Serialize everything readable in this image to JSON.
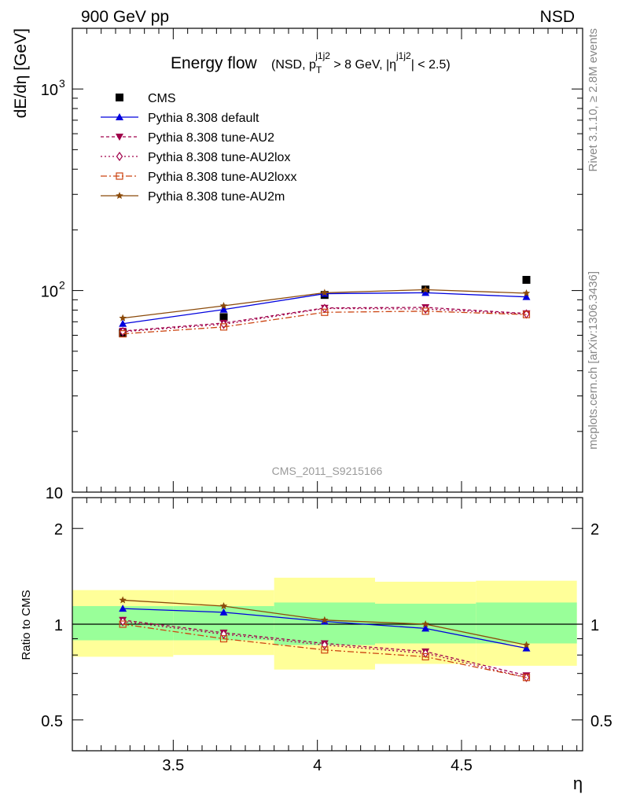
{
  "header": {
    "left": "900 GeV pp",
    "right": "NSD"
  },
  "side_labels": {
    "rivet": "Rivet 3.1.10, ≥ 2.8M events",
    "mcplots": "mcplots.cern.ch [arXiv:1306.3436]"
  },
  "chart_data": [
    {
      "type": "line",
      "title_main": "Energy flow",
      "title_sub_parts": [
        "(NSD, p",
        "T",
        "j1j2",
        " > 8 GeV, |η",
        "j1j2",
        "| < 2.5)"
      ],
      "ylabel": "dE/dη [GeV]",
      "yscale": "log",
      "ylim": [
        10,
        2000
      ],
      "xlim": [
        3.15,
        4.92
      ],
      "y_ticks": [
        {
          "value": 10,
          "label": "10"
        },
        {
          "value": 100,
          "label": "10",
          "exp": "2"
        },
        {
          "value": 1000,
          "label": "10",
          "exp": "3"
        }
      ],
      "watermark": "CMS_2011_S9215166",
      "x": [
        3.325,
        3.675,
        4.025,
        4.375,
        4.725
      ],
      "series": [
        {
          "name": "CMS",
          "style": "data",
          "color": "#000000",
          "values": [
            61.5,
            73.8,
            95.1,
            101.2,
            113.0
          ]
        },
        {
          "name": "Pythia 8.308 default",
          "color": "#0000dd",
          "dash": "",
          "marker": "triangle-up",
          "values": [
            68.5,
            80.5,
            96.5,
            97.5,
            93.0
          ]
        },
        {
          "name": "Pythia 8.308 tune-AU2",
          "color": "#a0004a",
          "dash": "4,3",
          "marker": "triangle-down",
          "values": [
            63.0,
            69.0,
            82.0,
            82.5,
            77.0
          ]
        },
        {
          "name": "Pythia 8.308 tune-AU2lox",
          "color": "#a0004a",
          "dash": "2,3",
          "marker": "diamond-open",
          "values": [
            62.5,
            68.0,
            81.5,
            81.0,
            76.5
          ]
        },
        {
          "name": "Pythia 8.308 tune-AU2loxx",
          "color": "#cc4411",
          "dash": "8,3,2,3",
          "marker": "square-open",
          "values": [
            61.0,
            66.0,
            78.0,
            79.0,
            76.0
          ]
        },
        {
          "name": "Pythia 8.308 tune-AU2m",
          "color": "#8b4a0a",
          "dash": "",
          "marker": "star",
          "values": [
            73.0,
            84.0,
            97.5,
            101.0,
            97.0
          ]
        }
      ]
    },
    {
      "type": "line",
      "ylabel": "Ratio to CMS",
      "xlabel": "η",
      "yscale": "log",
      "ylim": [
        0.4,
        2.5
      ],
      "xlim": [
        3.15,
        4.92
      ],
      "y_ticks": [
        {
          "value": 0.5,
          "label": "0.5"
        },
        {
          "value": 1,
          "label": "1"
        },
        {
          "value": 2,
          "label": "2"
        }
      ],
      "x_ticks": [
        {
          "value": 3.5,
          "label": "3.5"
        },
        {
          "value": 4,
          "label": "4"
        },
        {
          "value": 4.5,
          "label": "4.5"
        }
      ],
      "bands": {
        "edges": [
          3.15,
          3.5,
          3.85,
          4.2,
          4.55,
          4.9
        ],
        "inner": [
          [
            0.89,
            1.14
          ],
          [
            0.89,
            1.14
          ],
          [
            0.86,
            1.17
          ],
          [
            0.87,
            1.16
          ],
          [
            0.87,
            1.17
          ]
        ],
        "outer": [
          [
            0.79,
            1.28
          ],
          [
            0.8,
            1.28
          ],
          [
            0.72,
            1.4
          ],
          [
            0.75,
            1.36
          ],
          [
            0.74,
            1.37
          ]
        ],
        "inner_color": "#99ff99",
        "outer_color": "#ffff99"
      },
      "series": [
        {
          "name": "Pythia 8.308 default",
          "color": "#0000dd",
          "dash": "",
          "marker": "triangle-up",
          "values": [
            1.12,
            1.09,
            1.02,
            0.97,
            0.84
          ]
        },
        {
          "name": "Pythia 8.308 tune-AU2",
          "color": "#a0004a",
          "dash": "4,3",
          "marker": "triangle-down",
          "values": [
            1.03,
            0.94,
            0.87,
            0.82,
            0.69
          ]
        },
        {
          "name": "Pythia 8.308 tune-AU2lox",
          "color": "#a0004a",
          "dash": "2,3",
          "marker": "diamond-open",
          "values": [
            1.02,
            0.93,
            0.86,
            0.81,
            0.68
          ]
        },
        {
          "name": "Pythia 8.308 tune-AU2loxx",
          "color": "#cc4411",
          "dash": "8,3,2,3",
          "marker": "square-open",
          "values": [
            1.0,
            0.9,
            0.83,
            0.79,
            0.68
          ]
        },
        {
          "name": "Pythia 8.308 tune-AU2m",
          "color": "#8b4a0a",
          "dash": "",
          "marker": "star",
          "values": [
            1.19,
            1.14,
            1.03,
            1.0,
            0.86
          ]
        }
      ]
    }
  ]
}
